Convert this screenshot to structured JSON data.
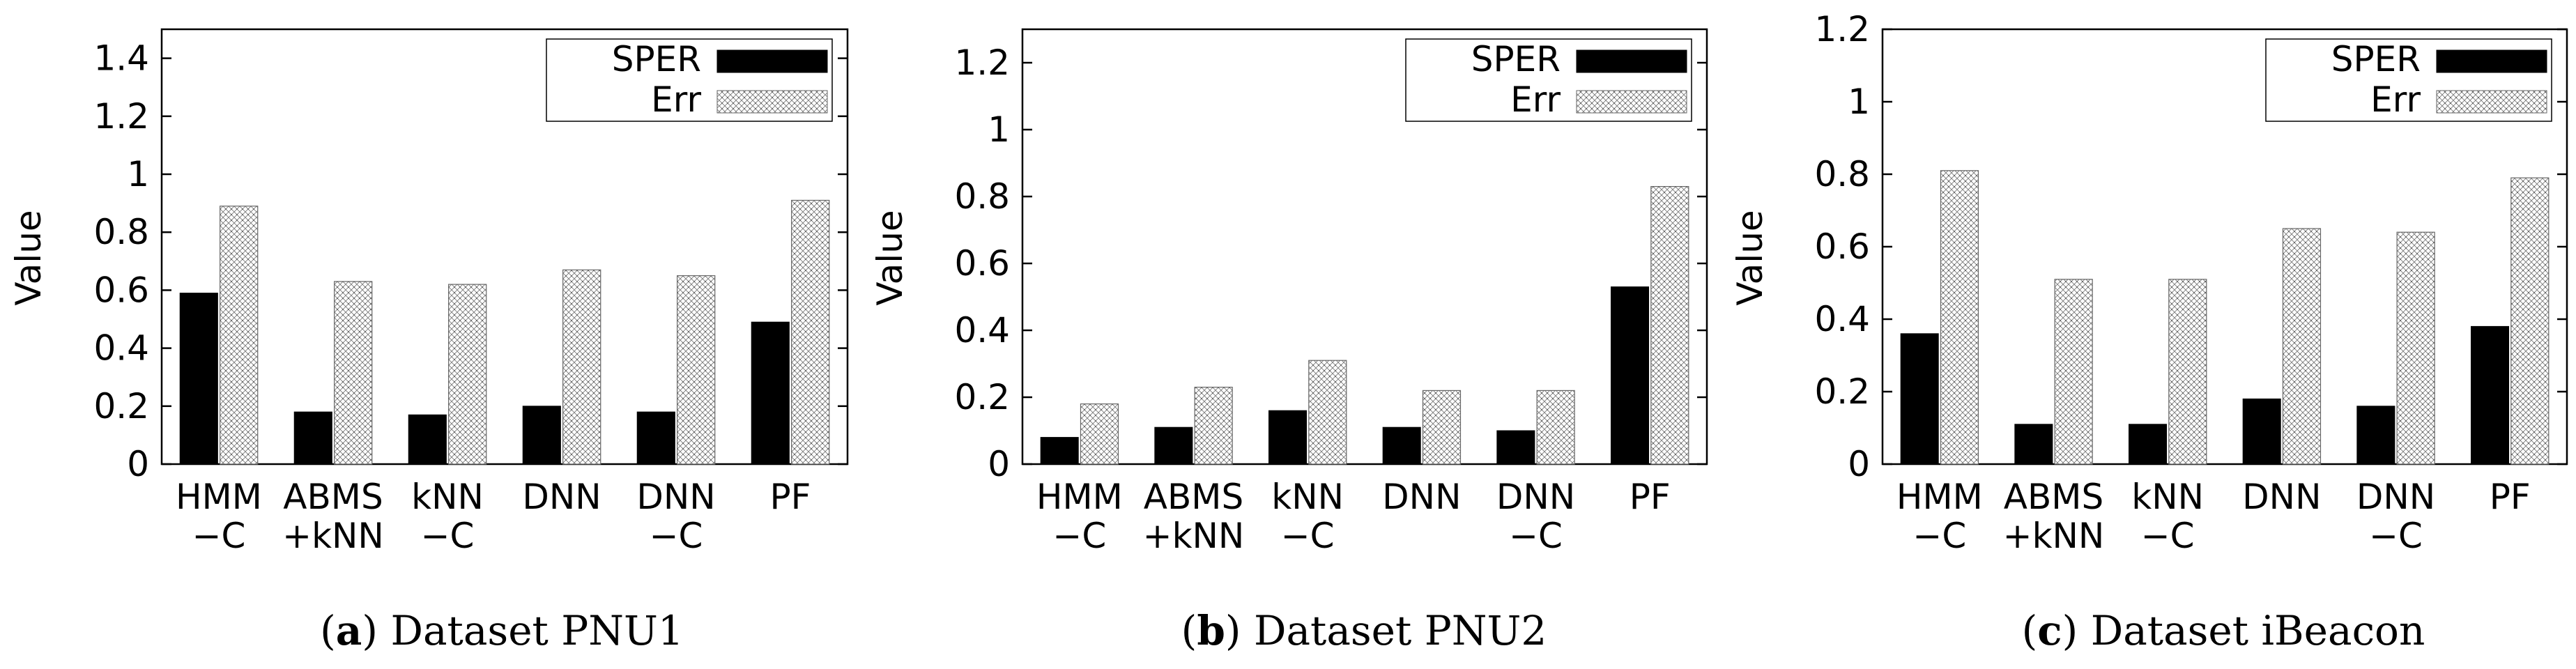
{
  "colors": {
    "sper": "#000000",
    "err_pattern": "crosshatch-dots",
    "axis": "#000000",
    "background": "#ffffff"
  },
  "chart_data": [
    {
      "type": "bar",
      "caption_letter": "a",
      "caption_text": ") Dataset PNU1",
      "ylabel": "Value",
      "ylim": [
        0,
        1.5
      ],
      "yticks": [
        "0",
        "0.2",
        "0.4",
        "0.6",
        "0.8",
        "1",
        "1.2",
        "1.4"
      ],
      "categories": [
        [
          "HMM",
          "−C"
        ],
        [
          "ABMS",
          "+kNN"
        ],
        [
          "kNN",
          "−C"
        ],
        [
          "DNN",
          ""
        ],
        [
          "DNN",
          "−C"
        ],
        [
          "PF",
          ""
        ]
      ],
      "series": [
        {
          "name": "SPER",
          "values": [
            0.59,
            0.18,
            0.17,
            0.2,
            0.18,
            0.49
          ]
        },
        {
          "name": "Err",
          "values": [
            0.89,
            0.63,
            0.62,
            0.67,
            0.65,
            0.91
          ]
        }
      ],
      "legend_position": "top-right",
      "grid": false
    },
    {
      "type": "bar",
      "caption_letter": "b",
      "caption_text": ") Dataset PNU2",
      "ylabel": "Value",
      "ylim": [
        0,
        1.3
      ],
      "yticks": [
        "0",
        "0.2",
        "0.4",
        "0.6",
        "0.8",
        "1",
        "1.2"
      ],
      "categories": [
        [
          "HMM",
          "−C"
        ],
        [
          "ABMS",
          "+kNN"
        ],
        [
          "kNN",
          "−C"
        ],
        [
          "DNN",
          ""
        ],
        [
          "DNN",
          "−C"
        ],
        [
          "PF",
          ""
        ]
      ],
      "series": [
        {
          "name": "SPER",
          "values": [
            0.08,
            0.11,
            0.16,
            0.11,
            0.1,
            0.53
          ]
        },
        {
          "name": "Err",
          "values": [
            0.18,
            0.23,
            0.31,
            0.22,
            0.22,
            0.83
          ]
        }
      ],
      "legend_position": "top-right",
      "grid": false
    },
    {
      "type": "bar",
      "caption_letter": "c",
      "caption_text": ") Dataset iBeacon",
      "ylabel": "Value",
      "ylim": [
        0,
        1.2
      ],
      "yticks": [
        "0",
        "0.2",
        "0.4",
        "0.6",
        "0.8",
        "1",
        "1.2"
      ],
      "categories": [
        [
          "HMM",
          "−C"
        ],
        [
          "ABMS",
          "+kNN"
        ],
        [
          "kNN",
          "−C"
        ],
        [
          "DNN",
          ""
        ],
        [
          "DNN",
          "−C"
        ],
        [
          "PF",
          ""
        ]
      ],
      "series": [
        {
          "name": "SPER",
          "values": [
            0.36,
            0.11,
            0.11,
            0.18,
            0.16,
            0.38
          ]
        },
        {
          "name": "Err",
          "values": [
            0.81,
            0.51,
            0.51,
            0.65,
            0.64,
            0.79
          ]
        }
      ],
      "legend_position": "top-right",
      "grid": false
    }
  ]
}
